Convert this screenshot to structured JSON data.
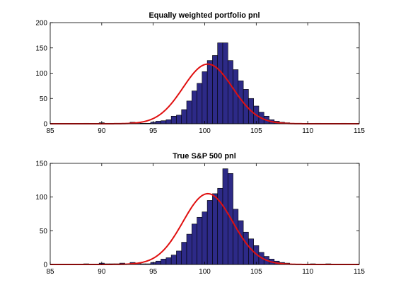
{
  "colors": {
    "bar_fill": "#2d2a87",
    "bar_stroke": "#000000",
    "curve": "#e01010",
    "axes": "#000000",
    "background": "#ffffff"
  },
  "chart_data": [
    {
      "type": "bar",
      "title": "Equally weighted portfolio pnl",
      "xlabel": "",
      "ylabel": "",
      "xlim": [
        85,
        115
      ],
      "ylim": [
        0,
        200
      ],
      "xticks": [
        85,
        90,
        95,
        100,
        105,
        110,
        115
      ],
      "yticks": [
        0,
        50,
        100,
        150,
        200
      ],
      "bin_width": 0.5,
      "bins": [
        {
          "x": 88.5,
          "count": 1
        },
        {
          "x": 90.0,
          "count": 2
        },
        {
          "x": 90.5,
          "count": 1
        },
        {
          "x": 91.0,
          "count": 1
        },
        {
          "x": 91.5,
          "count": 1
        },
        {
          "x": 92.0,
          "count": 1
        },
        {
          "x": 93.0,
          "count": 3
        },
        {
          "x": 93.5,
          "count": 2
        },
        {
          "x": 94.0,
          "count": 1
        },
        {
          "x": 94.5,
          "count": 1
        },
        {
          "x": 95.0,
          "count": 3
        },
        {
          "x": 95.5,
          "count": 5
        },
        {
          "x": 96.0,
          "count": 6
        },
        {
          "x": 96.5,
          "count": 8
        },
        {
          "x": 97.0,
          "count": 15
        },
        {
          "x": 97.5,
          "count": 17
        },
        {
          "x": 98.0,
          "count": 28
        },
        {
          "x": 98.5,
          "count": 45
        },
        {
          "x": 99.0,
          "count": 65
        },
        {
          "x": 99.5,
          "count": 80
        },
        {
          "x": 100.0,
          "count": 103
        },
        {
          "x": 100.5,
          "count": 125
        },
        {
          "x": 101.0,
          "count": 135
        },
        {
          "x": 101.5,
          "count": 160
        },
        {
          "x": 102.0,
          "count": 160
        },
        {
          "x": 102.5,
          "count": 125
        },
        {
          "x": 103.0,
          "count": 107
        },
        {
          "x": 103.5,
          "count": 85
        },
        {
          "x": 104.0,
          "count": 68
        },
        {
          "x": 104.5,
          "count": 50
        },
        {
          "x": 105.0,
          "count": 35
        },
        {
          "x": 105.5,
          "count": 23
        },
        {
          "x": 106.0,
          "count": 15
        },
        {
          "x": 106.5,
          "count": 8
        },
        {
          "x": 107.0,
          "count": 5
        },
        {
          "x": 107.5,
          "count": 3
        },
        {
          "x": 108.0,
          "count": 2
        },
        {
          "x": 108.5,
          "count": 1
        },
        {
          "x": 111.0,
          "count": 1
        },
        {
          "x": 113.5,
          "count": 1
        }
      ],
      "fit": {
        "type": "normal",
        "peak": 118,
        "mean": 100.3,
        "sigma": 2.4
      }
    },
    {
      "type": "bar",
      "title": "True S&P 500 pnl",
      "xlabel": "",
      "ylabel": "",
      "xlim": [
        85,
        115
      ],
      "ylim": [
        0,
        150
      ],
      "xticks": [
        85,
        90,
        95,
        100,
        105,
        110,
        115
      ],
      "yticks": [
        0,
        50,
        100,
        150
      ],
      "bin_width": 0.5,
      "bins": [
        {
          "x": 88.5,
          "count": 1
        },
        {
          "x": 90.0,
          "count": 2
        },
        {
          "x": 90.5,
          "count": 1
        },
        {
          "x": 91.0,
          "count": 1
        },
        {
          "x": 91.5,
          "count": 1
        },
        {
          "x": 92.0,
          "count": 2
        },
        {
          "x": 93.0,
          "count": 3
        },
        {
          "x": 93.5,
          "count": 2
        },
        {
          "x": 94.0,
          "count": 1
        },
        {
          "x": 94.5,
          "count": 1
        },
        {
          "x": 95.0,
          "count": 3
        },
        {
          "x": 95.5,
          "count": 5
        },
        {
          "x": 96.0,
          "count": 8
        },
        {
          "x": 96.5,
          "count": 10
        },
        {
          "x": 97.0,
          "count": 14
        },
        {
          "x": 97.5,
          "count": 20
        },
        {
          "x": 98.0,
          "count": 33
        },
        {
          "x": 98.5,
          "count": 45
        },
        {
          "x": 99.0,
          "count": 60
        },
        {
          "x": 99.5,
          "count": 70
        },
        {
          "x": 100.0,
          "count": 78
        },
        {
          "x": 100.5,
          "count": 95
        },
        {
          "x": 101.0,
          "count": 105
        },
        {
          "x": 101.5,
          "count": 113
        },
        {
          "x": 102.0,
          "count": 142
        },
        {
          "x": 102.5,
          "count": 135
        },
        {
          "x": 103.0,
          "count": 82
        },
        {
          "x": 103.5,
          "count": 65
        },
        {
          "x": 104.0,
          "count": 48
        },
        {
          "x": 104.5,
          "count": 38
        },
        {
          "x": 105.0,
          "count": 28
        },
        {
          "x": 105.5,
          "count": 18
        },
        {
          "x": 106.0,
          "count": 12
        },
        {
          "x": 106.5,
          "count": 8
        },
        {
          "x": 107.0,
          "count": 5
        },
        {
          "x": 107.5,
          "count": 3
        },
        {
          "x": 108.0,
          "count": 2
        },
        {
          "x": 110.5,
          "count": 1
        },
        {
          "x": 112.0,
          "count": 1
        }
      ],
      "fit": {
        "type": "normal",
        "peak": 105,
        "mean": 100.3,
        "sigma": 2.4
      }
    }
  ]
}
